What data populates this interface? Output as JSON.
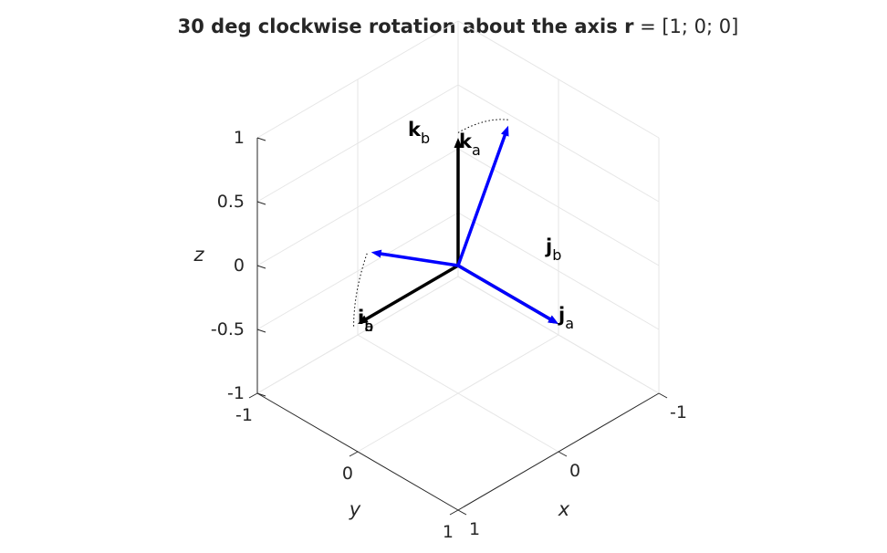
{
  "chart_data": {
    "type": "3d-vector",
    "title": {
      "prefix": "30 deg clockwise rotation about the axis ",
      "bold_symbol": "r",
      "suffix": " = [1; 0; 0]"
    },
    "xlabel": "x",
    "ylabel": "y",
    "zlabel": "z",
    "xlim": [
      -1,
      1
    ],
    "ylim": [
      -1,
      1
    ],
    "zlim": [
      -1,
      1
    ],
    "x_ticks": [
      "-1",
      "0",
      "1"
    ],
    "y_ticks": [
      "-1",
      "0",
      "1"
    ],
    "z_ticks": [
      "-1",
      "-0.5",
      "0",
      "0.5",
      "1"
    ],
    "z_tick_values": [
      -1,
      -0.5,
      0,
      0.5,
      1
    ],
    "grid": true,
    "rotation": {
      "angle_deg": 30,
      "direction": "clockwise",
      "axis": [
        1,
        0,
        0
      ]
    },
    "vectors": [
      {
        "frame": "a",
        "letter": "i",
        "sub": "a",
        "color": "#000000",
        "vec": [
          1,
          0,
          0
        ]
      },
      {
        "frame": "a",
        "letter": "j",
        "sub": "a",
        "color": "#000000",
        "vec": [
          0,
          1,
          0
        ]
      },
      {
        "frame": "a",
        "letter": "k",
        "sub": "a",
        "color": "#000000",
        "vec": [
          0,
          0,
          1
        ]
      },
      {
        "frame": "b",
        "letter": "i",
        "sub": "b",
        "color": "#0000ff",
        "vec": [
          1,
          0,
          0
        ]
      },
      {
        "frame": "b",
        "letter": "j",
        "sub": "b",
        "color": "#0000ff",
        "vec": [
          0,
          0.866,
          0.5
        ]
      },
      {
        "frame": "b",
        "letter": "k",
        "sub": "b",
        "color": "#0000ff",
        "vec": [
          0,
          -0.5,
          0.866
        ]
      }
    ],
    "arc_color": "#000000"
  }
}
